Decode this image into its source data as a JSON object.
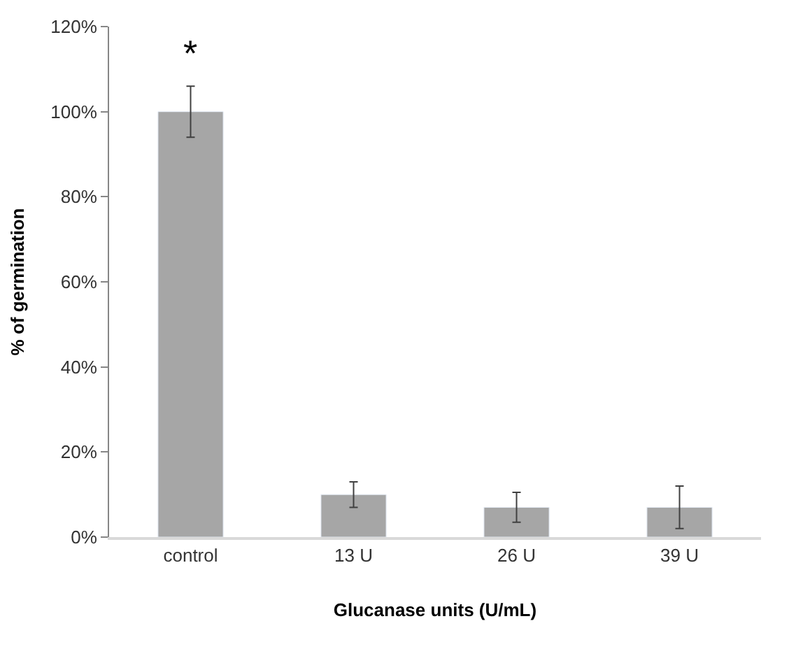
{
  "chart_data": {
    "type": "bar",
    "xlabel": "Glucanase units (U/mL)",
    "ylabel": "% of germination",
    "categories": [
      "control",
      "13 U",
      "26 U",
      "39 U"
    ],
    "values": [
      100,
      10,
      7,
      7
    ],
    "errors": [
      6,
      3,
      3.5,
      5
    ],
    "color": "#a6a6a6",
    "ylim": [
      0,
      120
    ],
    "yticks": [
      {
        "value": 0,
        "label": "0%"
      },
      {
        "value": 20,
        "label": "20%"
      },
      {
        "value": 40,
        "label": "40%"
      },
      {
        "value": 60,
        "label": "60%"
      },
      {
        "value": 80,
        "label": "80%"
      },
      {
        "value": 100,
        "label": "100%"
      },
      {
        "value": 120,
        "label": "120%"
      }
    ],
    "annotations": [
      "*"
    ],
    "legend": false
  }
}
